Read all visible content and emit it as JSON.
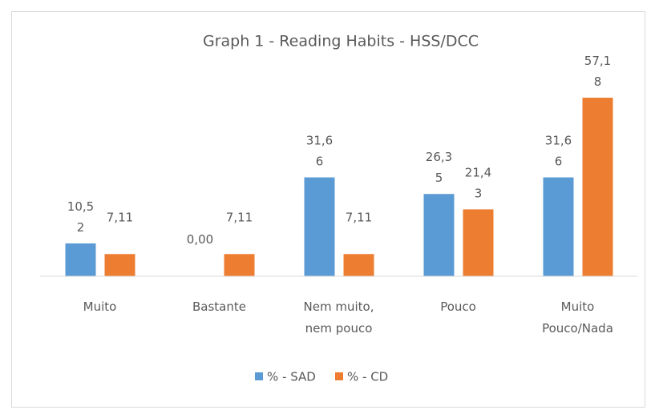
{
  "chart_data": {
    "type": "bar",
    "title": "Graph 1 - Reading Habits - HSS/DCC",
    "categories": [
      "Muito",
      "Bastante",
      "Nem muito, nem pouco",
      "Pouco",
      "Muito Pouco/Nada"
    ],
    "series": [
      {
        "name": "% - SAD",
        "color": "#5b9bd5",
        "values": [
          10.52,
          0.0,
          31.66,
          26.35,
          31.66
        ],
        "value_labels": [
          "10,52",
          "0,00",
          "31,66",
          "26,35",
          "31,66"
        ]
      },
      {
        "name": "% - CD",
        "color": "#ed7d31",
        "values": [
          7.11,
          7.11,
          7.11,
          21.43,
          57.18
        ],
        "value_labels": [
          "7,11",
          "7,11",
          "7,11",
          "21,43",
          "57,18"
        ]
      }
    ],
    "legend": "bottom"
  }
}
